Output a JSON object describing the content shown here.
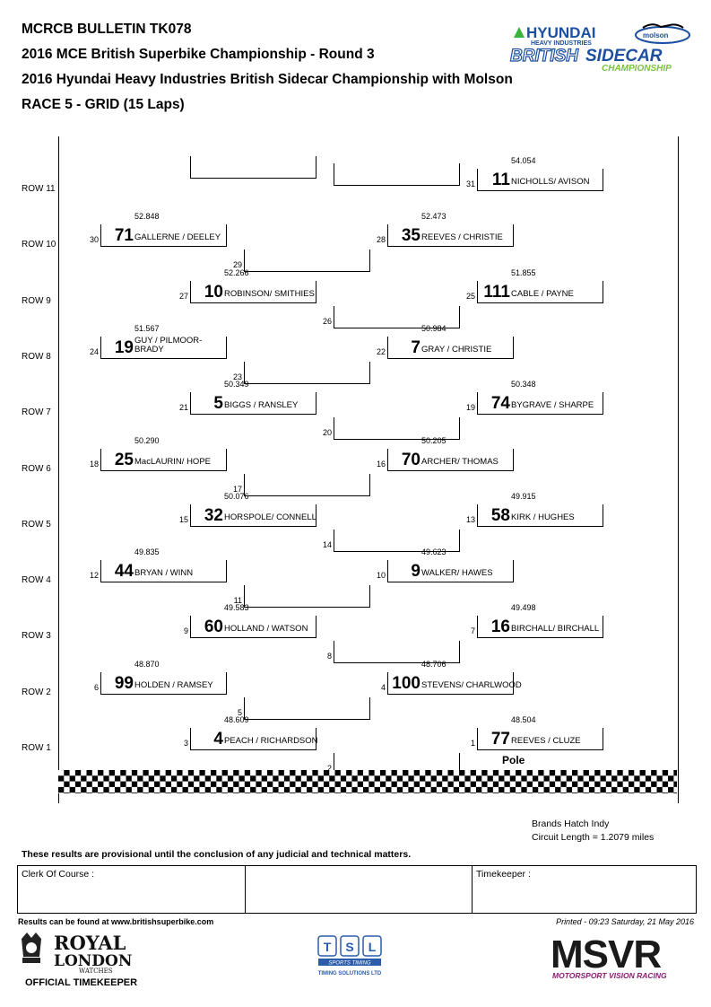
{
  "header": {
    "bulletin": "MCRCB BULLETIN TK078",
    "championship": "2016 MCE British Superbike Championship - Round 3",
    "series": "2016 Hyundai Heavy Industries British Sidecar Championship with Molson",
    "race": "RACE 5 - GRID (15 Laps)"
  },
  "logo": {
    "brand": "HYUNDAI",
    "sub": "HEAVY INDUSTRIES",
    "molson": "molson",
    "title_a": "BRITISH",
    "title_b": "SIDECAR",
    "title_c": "CHAMPIONSHIP"
  },
  "rows": [
    "ROW 11",
    "ROW 10",
    "ROW 9",
    "ROW 8",
    "ROW 7",
    "ROW 6",
    "ROW 5",
    "ROW 4",
    "ROW 3",
    "ROW 2",
    "ROW 1"
  ],
  "grid": [
    {
      "pos": "31",
      "num": "11",
      "rider": "NICHOLLS/ AVISON",
      "time": "54.054"
    },
    {
      "pos": "30",
      "num": "71",
      "rider": "GALLERNE / DEELEY",
      "time": "52.848"
    },
    {
      "pos": "29",
      "num": "",
      "rider": "",
      "time": ""
    },
    {
      "pos": "28",
      "num": "35",
      "rider": "REEVES / CHRISTIE",
      "time": "52.473"
    },
    {
      "pos": "27",
      "num": "10",
      "rider": "ROBINSON/ SMITHIES",
      "time": "52.266"
    },
    {
      "pos": "26",
      "num": "",
      "rider": "",
      "time": ""
    },
    {
      "pos": "25",
      "num": "111",
      "rider": "CABLE / PAYNE",
      "time": "51.855"
    },
    {
      "pos": "24",
      "num": "19",
      "rider": "GUY / PILMOOR-BRADY",
      "time": "51.567"
    },
    {
      "pos": "23",
      "num": "",
      "rider": "",
      "time": ""
    },
    {
      "pos": "22",
      "num": "7",
      "rider": "GRAY / CHRISTIE",
      "time": "50.984"
    },
    {
      "pos": "21",
      "num": "5",
      "rider": "BIGGS / RANSLEY",
      "time": "50.349"
    },
    {
      "pos": "20",
      "num": "",
      "rider": "",
      "time": ""
    },
    {
      "pos": "19",
      "num": "74",
      "rider": "BYGRAVE / SHARPE",
      "time": "50.348"
    },
    {
      "pos": "18",
      "num": "25",
      "rider": "MacLAURIN/ HOPE",
      "time": "50.290"
    },
    {
      "pos": "17",
      "num": "",
      "rider": "",
      "time": ""
    },
    {
      "pos": "16",
      "num": "70",
      "rider": "ARCHER/ THOMAS",
      "time": "50.205"
    },
    {
      "pos": "15",
      "num": "32",
      "rider": "HORSPOLE/ CONNELL",
      "time": "50.076"
    },
    {
      "pos": "14",
      "num": "",
      "rider": "",
      "time": ""
    },
    {
      "pos": "13",
      "num": "58",
      "rider": "KIRK / HUGHES",
      "time": "49.915"
    },
    {
      "pos": "12",
      "num": "44",
      "rider": "BRYAN / WINN",
      "time": "49.835"
    },
    {
      "pos": "11",
      "num": "",
      "rider": "",
      "time": ""
    },
    {
      "pos": "10",
      "num": "9",
      "rider": "WALKER/ HAWES",
      "time": "49.623"
    },
    {
      "pos": "9",
      "num": "60",
      "rider": "HOLLAND / WATSON",
      "time": "49.583"
    },
    {
      "pos": "8",
      "num": "",
      "rider": "",
      "time": ""
    },
    {
      "pos": "7",
      "num": "16",
      "rider": "BIRCHALL/ BIRCHALL",
      "time": "49.498"
    },
    {
      "pos": "6",
      "num": "99",
      "rider": "HOLDEN / RAMSEY",
      "time": "48.870"
    },
    {
      "pos": "5",
      "num": "",
      "rider": "",
      "time": ""
    },
    {
      "pos": "4",
      "num": "100",
      "rider": "STEVENS/ CHARLWOOD",
      "time": "48.706"
    },
    {
      "pos": "3",
      "num": "4",
      "rider": "PEACH / RICHARDSON",
      "time": "48.609"
    },
    {
      "pos": "2",
      "num": "",
      "rider": "",
      "time": ""
    },
    {
      "pos": "1",
      "num": "77",
      "rider": "REEVES / CLUZE",
      "time": "48.504"
    }
  ],
  "pole_label": "Pole",
  "circuit": {
    "name": "Brands Hatch Indy",
    "length": "Circuit Length = 1.2079 miles"
  },
  "disclaimer": "These results are provisional until the conclusion of any judicial and technical matters.",
  "signatures": {
    "clerk": "Clerk Of Course :",
    "timekeeper": "Timekeeper :"
  },
  "footer": {
    "website": "Results can be found at www.britishsuperbike.com",
    "printed": "Printed - 09:23 Saturday, 21 May 2016",
    "royal_1": "ROYAL",
    "royal_2": "LONDON",
    "royal_3": "WATCHES",
    "official": "OFFICIAL TIMEKEEPER",
    "tsl_t": "T",
    "tsl_s": "S",
    "tsl_l": "L",
    "tsl_sub": "SPORTS TIMING",
    "tsl_name": "TIMING SOLUTIONS LTD",
    "msvr": "MSVR",
    "msvr_sub": "MOTORSPORT VISION RACING"
  }
}
